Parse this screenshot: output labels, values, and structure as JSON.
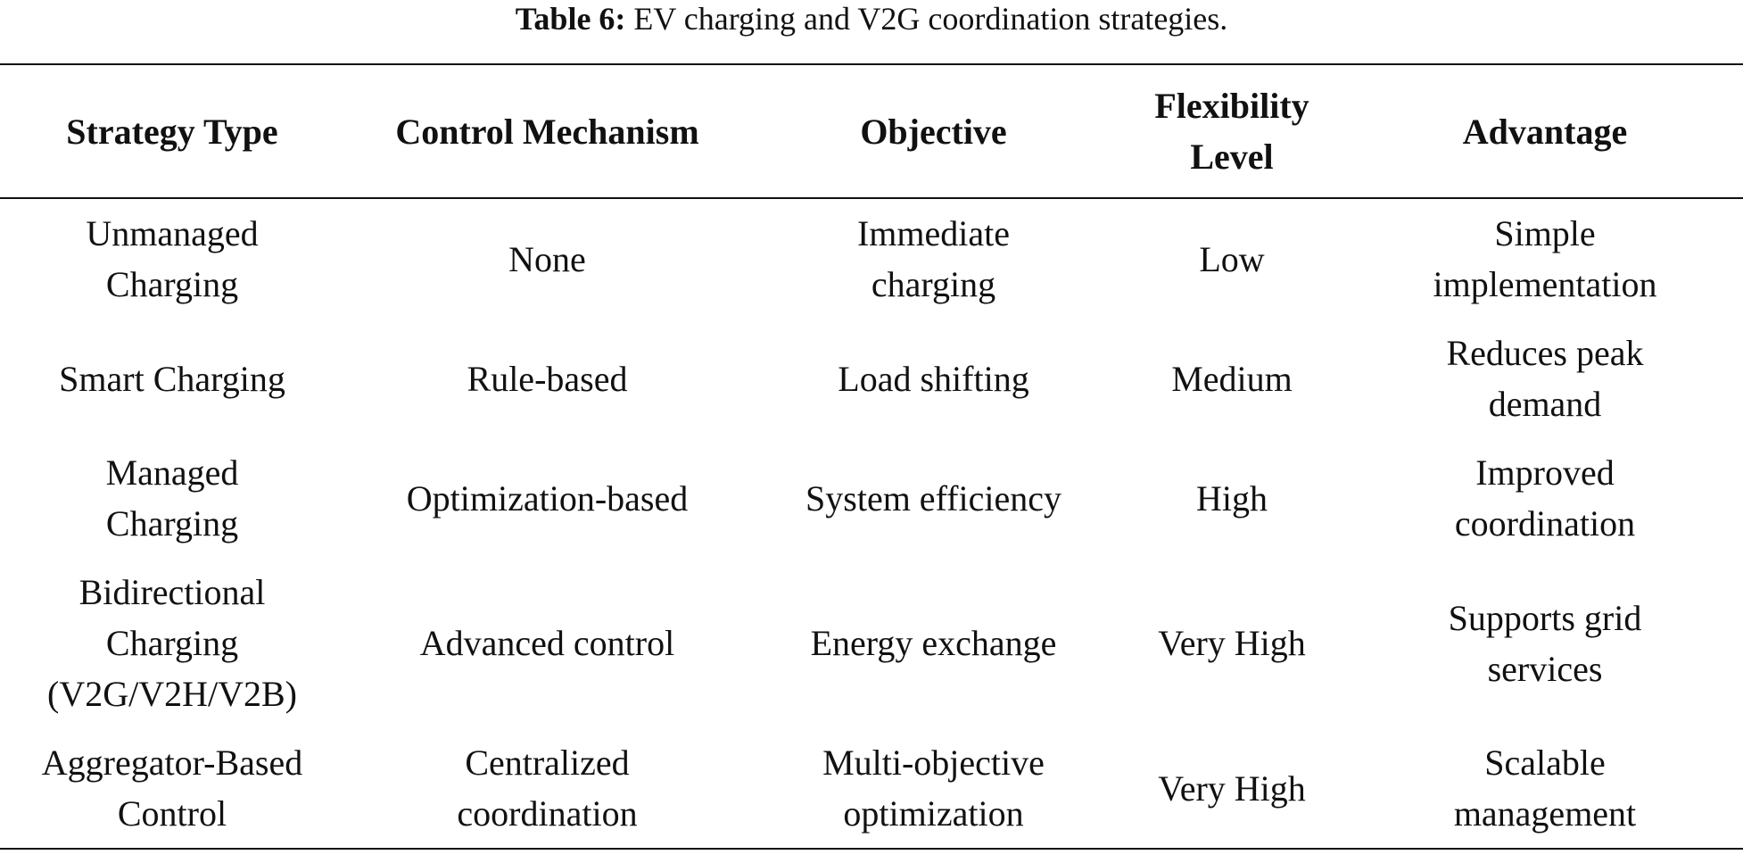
{
  "caption": {
    "label": "Table 6:",
    "text": "EV charging and V2G coordination strategies."
  },
  "table": {
    "header": [
      [
        "Strategy Type"
      ],
      [
        "Control Mechanism"
      ],
      [
        "Objective"
      ],
      [
        "Flexibility",
        "Level"
      ],
      [
        "Advantage"
      ]
    ],
    "rows": [
      [
        [
          "Unmanaged",
          "Charging"
        ],
        [
          "None"
        ],
        [
          "Immediate",
          "charging"
        ],
        [
          "Low"
        ],
        [
          "Simple",
          "implementation"
        ]
      ],
      [
        [
          "Smart Charging"
        ],
        [
          "Rule-based"
        ],
        [
          "Load shifting"
        ],
        [
          "Medium"
        ],
        [
          "Reduces peak",
          "demand"
        ]
      ],
      [
        [
          "Managed",
          "Charging"
        ],
        [
          "Optimization-based"
        ],
        [
          "System efficiency"
        ],
        [
          "High"
        ],
        [
          "Improved",
          "coordination"
        ]
      ],
      [
        [
          "Bidirectional",
          "Charging",
          "(V2G/V2H/V2B)"
        ],
        [
          "Advanced control"
        ],
        [
          "Energy exchange"
        ],
        [
          "Very High"
        ],
        [
          "Supports grid",
          "services"
        ]
      ],
      [
        [
          "Aggregator-Based",
          "Control"
        ],
        [
          "Centralized",
          "coordination"
        ],
        [
          "Multi-objective",
          "optimization"
        ],
        [
          "Very High"
        ],
        [
          "Scalable",
          "management"
        ]
      ]
    ]
  }
}
